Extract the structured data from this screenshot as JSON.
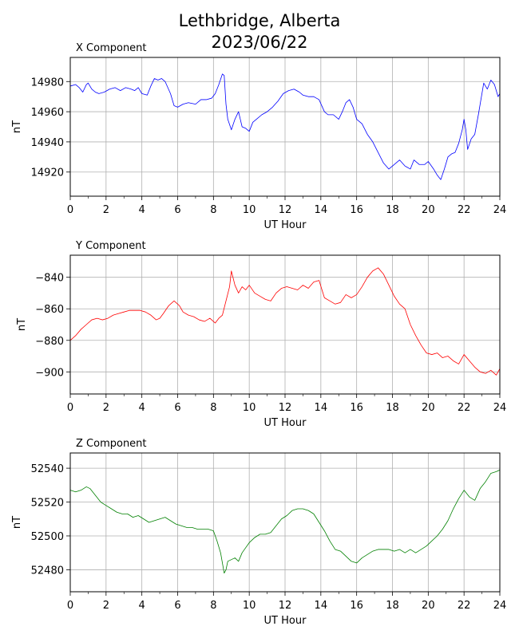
{
  "figure": {
    "title_line1": "Lethbridge, Alberta",
    "title_line2": "2023/06/22"
  },
  "chart_data": [
    {
      "type": "line",
      "title": "X Component",
      "xlabel": "UT Hour",
      "ylabel": "nT",
      "xlim": [
        0,
        24
      ],
      "ylim": [
        14904,
        14996
      ],
      "xticks": [
        0,
        2,
        4,
        6,
        8,
        10,
        12,
        14,
        16,
        18,
        20,
        22,
        24
      ],
      "yticks": [
        14920,
        14940,
        14960,
        14980
      ],
      "grid": true,
      "series": [
        {
          "color": "#0000ff",
          "x": [
            0,
            0.3,
            0.5,
            0.7,
            0.9,
            1.0,
            1.2,
            1.4,
            1.6,
            1.9,
            2.2,
            2.5,
            2.8,
            3.1,
            3.4,
            3.6,
            3.8,
            4.0,
            4.3,
            4.5,
            4.7,
            4.9,
            5.1,
            5.3,
            5.6,
            5.8,
            6.0,
            6.3,
            6.6,
            7.0,
            7.3,
            7.6,
            7.9,
            8.1,
            8.3,
            8.5,
            8.6,
            8.7,
            8.8,
            9.0,
            9.2,
            9.4,
            9.6,
            9.8,
            10.0,
            10.2,
            10.4,
            10.7,
            11.0,
            11.3,
            11.6,
            11.9,
            12.2,
            12.5,
            12.8,
            13.0,
            13.3,
            13.6,
            13.9,
            14.2,
            14.4,
            14.7,
            15.0,
            15.2,
            15.4,
            15.6,
            15.8,
            16.0,
            16.3,
            16.6,
            16.9,
            17.2,
            17.5,
            17.8,
            18.1,
            18.4,
            18.7,
            19.0,
            19.2,
            19.5,
            19.8,
            20.0,
            20.3,
            20.5,
            20.7,
            20.9,
            21.1,
            21.3,
            21.5,
            21.7,
            21.9,
            22.0,
            22.1,
            22.2,
            22.4,
            22.6,
            22.8,
            23.0,
            23.1,
            23.3,
            23.5,
            23.7,
            23.9,
            24.0
          ],
          "y": [
            14977,
            14978,
            14976,
            14973,
            14978,
            14979,
            14975,
            14973,
            14972,
            14973,
            14975,
            14976,
            14974,
            14976,
            14975,
            14974,
            14976,
            14972,
            14971,
            14977,
            14982,
            14981,
            14982,
            14980,
            14972,
            14964,
            14963,
            14965,
            14966,
            14965,
            14968,
            14968,
            14969,
            14972,
            14978,
            14985,
            14984,
            14965,
            14955,
            14948,
            14955,
            14960,
            14950,
            14949,
            14947,
            14953,
            14955,
            14958,
            14960,
            14963,
            14967,
            14972,
            14974,
            14975,
            14973,
            14971,
            14970,
            14970,
            14968,
            14960,
            14958,
            14958,
            14955,
            14960,
            14966,
            14968,
            14963,
            14955,
            14952,
            14945,
            14940,
            14933,
            14926,
            14922,
            14925,
            14928,
            14924,
            14922,
            14928,
            14925,
            14925,
            14927,
            14922,
            14918,
            14915,
            14922,
            14930,
            14932,
            14933,
            14939,
            14948,
            14955,
            14948,
            14935,
            14942,
            14945,
            14958,
            14972,
            14979,
            14975,
            14981,
            14978,
            14970,
            14972
          ]
        }
      ]
    },
    {
      "type": "line",
      "title": "Y Component",
      "xlabel": "UT Hour",
      "ylabel": "nT",
      "xlim": [
        0,
        24
      ],
      "ylim": [
        -914,
        -826
      ],
      "xticks": [
        0,
        2,
        4,
        6,
        8,
        10,
        12,
        14,
        16,
        18,
        20,
        22,
        24
      ],
      "yticks": [
        -900,
        -880,
        -860,
        -840
      ],
      "grid": true,
      "series": [
        {
          "color": "#ff0000",
          "x": [
            0,
            0.3,
            0.6,
            0.9,
            1.2,
            1.5,
            1.8,
            2.1,
            2.4,
            2.7,
            3.0,
            3.3,
            3.6,
            3.9,
            4.2,
            4.5,
            4.8,
            5.0,
            5.2,
            5.5,
            5.8,
            6.1,
            6.3,
            6.6,
            6.9,
            7.2,
            7.5,
            7.8,
            8.1,
            8.3,
            8.5,
            8.7,
            8.9,
            9.0,
            9.2,
            9.4,
            9.6,
            9.8,
            10.0,
            10.3,
            10.6,
            10.9,
            11.2,
            11.5,
            11.8,
            12.1,
            12.4,
            12.7,
            13.0,
            13.3,
            13.6,
            13.9,
            14.2,
            14.5,
            14.8,
            15.1,
            15.4,
            15.7,
            16.0,
            16.3,
            16.6,
            16.9,
            17.2,
            17.5,
            17.8,
            18.1,
            18.4,
            18.7,
            19.0,
            19.3,
            19.6,
            19.9,
            20.2,
            20.5,
            20.8,
            21.1,
            21.4,
            21.7,
            22.0,
            22.3,
            22.6,
            22.9,
            23.2,
            23.5,
            23.8,
            24.0
          ],
          "y": [
            -880,
            -877,
            -873,
            -870,
            -867,
            -866,
            -867,
            -866,
            -864,
            -863,
            -862,
            -861,
            -861,
            -861,
            -862,
            -864,
            -867,
            -866,
            -863,
            -858,
            -855,
            -858,
            -862,
            -864,
            -865,
            -867,
            -868,
            -866,
            -869,
            -866,
            -864,
            -855,
            -846,
            -836,
            -845,
            -850,
            -846,
            -848,
            -845,
            -850,
            -852,
            -854,
            -855,
            -850,
            -847,
            -846,
            -847,
            -848,
            -845,
            -847,
            -843,
            -842,
            -853,
            -855,
            -857,
            -856,
            -851,
            -853,
            -851,
            -846,
            -840,
            -836,
            -834,
            -838,
            -845,
            -852,
            -857,
            -860,
            -870,
            -877,
            -883,
            -888,
            -889,
            -888,
            -891,
            -890,
            -893,
            -895,
            -889,
            -893,
            -897,
            -900,
            -901,
            -899,
            -902,
            -898
          ]
        }
      ]
    },
    {
      "type": "line",
      "title": "Z Component",
      "xlabel": "UT Hour",
      "ylabel": "nT",
      "xlim": [
        0,
        24
      ],
      "ylim": [
        52467,
        52549
      ],
      "xticks": [
        0,
        2,
        4,
        6,
        8,
        10,
        12,
        14,
        16,
        18,
        20,
        22,
        24
      ],
      "yticks": [
        52480,
        52500,
        52520,
        52540
      ],
      "grid": true,
      "series": [
        {
          "color": "#008000",
          "x": [
            0,
            0.3,
            0.6,
            0.9,
            1.1,
            1.4,
            1.7,
            2.0,
            2.3,
            2.6,
            2.9,
            3.2,
            3.5,
            3.8,
            4.1,
            4.4,
            4.7,
            5.0,
            5.3,
            5.6,
            5.9,
            6.2,
            6.5,
            6.8,
            7.1,
            7.4,
            7.7,
            8.0,
            8.2,
            8.4,
            8.6,
            8.7,
            8.8,
            9.0,
            9.2,
            9.4,
            9.6,
            9.8,
            10.0,
            10.3,
            10.6,
            10.9,
            11.2,
            11.5,
            11.8,
            12.1,
            12.4,
            12.7,
            13.0,
            13.3,
            13.6,
            13.9,
            14.2,
            14.5,
            14.8,
            15.1,
            15.4,
            15.7,
            16.0,
            16.3,
            16.6,
            16.9,
            17.2,
            17.5,
            17.8,
            18.1,
            18.4,
            18.7,
            19.0,
            19.3,
            19.6,
            19.9,
            20.2,
            20.5,
            20.8,
            21.1,
            21.4,
            21.7,
            22.0,
            22.3,
            22.6,
            22.9,
            23.2,
            23.5,
            23.8,
            24.0
          ],
          "y": [
            52527,
            52526,
            52527,
            52529,
            52528,
            52524,
            52520,
            52518,
            52516,
            52514,
            52513,
            52513,
            52511,
            52512,
            52510,
            52508,
            52509,
            52510,
            52511,
            52509,
            52507,
            52506,
            52505,
            52505,
            52504,
            52504,
            52504,
            52503,
            52497,
            52490,
            52478,
            52480,
            52485,
            52486,
            52487,
            52485,
            52490,
            52493,
            52496,
            52499,
            52501,
            52501,
            52502,
            52506,
            52510,
            52512,
            52515,
            52516,
            52516,
            52515,
            52513,
            52508,
            52503,
            52497,
            52492,
            52491,
            52488,
            52485,
            52484,
            52487,
            52489,
            52491,
            52492,
            52492,
            52492,
            52491,
            52492,
            52490,
            52492,
            52490,
            52492,
            52494,
            52497,
            52500,
            52504,
            52509,
            52516,
            52522,
            52527,
            52523,
            52521,
            52528,
            52532,
            52537,
            52538,
            52539
          ]
        }
      ]
    }
  ]
}
